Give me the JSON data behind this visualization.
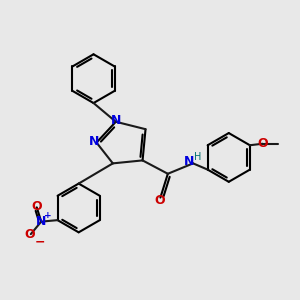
{
  "bg_color": "#e8e8e8",
  "bond_color": "#1a1a1a",
  "bond_lw": 1.5,
  "N_color": "#0000dd",
  "O_color": "#cc0000",
  "H_color": "#007070",
  "font_size": 9.0,
  "xlim": [
    0,
    10
  ],
  "ylim": [
    0,
    10
  ]
}
